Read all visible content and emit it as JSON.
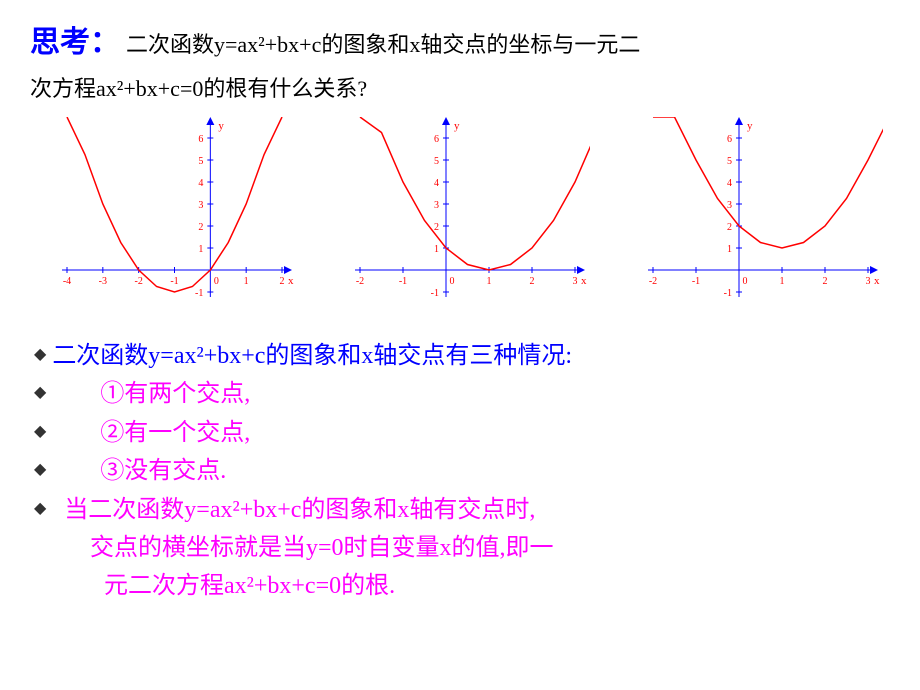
{
  "title": {
    "prefix": "思考：",
    "text1": "二次函数y=ax²+bx+c的图象和x轴交点的坐标与一元二",
    "text2": "次方程ax²+bx+c=0的根有什么关系?"
  },
  "charts": [
    {
      "type": "quadratic",
      "xrange": [
        -4,
        2
      ],
      "yrange": [
        -1,
        6
      ],
      "xticks": [
        -4,
        -3,
        -2,
        -1,
        0,
        1,
        2
      ],
      "yticks": [
        -1,
        1,
        2,
        3,
        4,
        5,
        6
      ],
      "vertex": [
        -1,
        -1
      ],
      "curve": [
        [
          -4,
          8
        ],
        [
          -3.5,
          5.25
        ],
        [
          -3,
          3
        ],
        [
          -2.5,
          1.25
        ],
        [
          -2,
          0
        ],
        [
          -1.5,
          -0.75
        ],
        [
          -1,
          -1
        ],
        [
          -0.5,
          -0.75
        ],
        [
          0,
          0
        ],
        [
          0.5,
          1.25
        ],
        [
          1,
          3
        ],
        [
          1.5,
          5.25
        ],
        [
          2,
          8
        ]
      ],
      "axis_color": "#0000ff",
      "curve_color": "#ff0000",
      "tick_color": "#ff0000",
      "bg": "#ffffff",
      "xlabel": "x",
      "ylabel": "y",
      "line_width": 1.5
    },
    {
      "type": "quadratic",
      "xrange": [
        -2,
        3
      ],
      "yrange": [
        -1,
        6
      ],
      "xticks": [
        -2,
        -1,
        0,
        1,
        2,
        3
      ],
      "yticks": [
        -1,
        1,
        2,
        3,
        4,
        5,
        6
      ],
      "vertex": [
        1,
        0
      ],
      "curve": [
        [
          -2,
          9
        ],
        [
          -1.5,
          6.25
        ],
        [
          -1,
          4
        ],
        [
          -0.5,
          2.25
        ],
        [
          0,
          1
        ],
        [
          0.5,
          0.25
        ],
        [
          1,
          0
        ],
        [
          1.5,
          0.25
        ],
        [
          2,
          1
        ],
        [
          2.5,
          2.25
        ],
        [
          3,
          4
        ],
        [
          3.5,
          6.25
        ]
      ],
      "axis_color": "#0000ff",
      "curve_color": "#ff0000",
      "tick_color": "#ff0000",
      "bg": "#ffffff",
      "xlabel": "x",
      "ylabel": "y",
      "line_width": 1.5
    },
    {
      "type": "quadratic",
      "xrange": [
        -2,
        3
      ],
      "yrange": [
        -1,
        6
      ],
      "xticks": [
        -2,
        -1,
        0,
        1,
        2,
        3
      ],
      "yticks": [
        -1,
        1,
        2,
        3,
        4,
        5,
        6
      ],
      "vertex": [
        1,
        1
      ],
      "curve": [
        [
          -2,
          10
        ],
        [
          -1.5,
          7.25
        ],
        [
          -1,
          5
        ],
        [
          -0.5,
          3.25
        ],
        [
          0,
          2
        ],
        [
          0.5,
          1.25
        ],
        [
          1,
          1
        ],
        [
          1.5,
          1.25
        ],
        [
          2,
          2
        ],
        [
          2.5,
          3.25
        ],
        [
          3,
          5
        ],
        [
          3.5,
          7.25
        ]
      ],
      "axis_color": "#0000ff",
      "curve_color": "#ff0000",
      "tick_color": "#ff0000",
      "bg": "#ffffff",
      "xlabel": "x",
      "ylabel": "y",
      "line_width": 1.5
    }
  ],
  "answer": {
    "main": "二次函数y=ax²+bx+c的图象和x轴交点有三种情况:",
    "item1": "①有两个交点,",
    "item2": "②有一个交点,",
    "item3": "③没有交点.",
    "explain1": "当二次函数y=ax²+bx+c的图象和x轴有交点时,",
    "explain2": "交点的横坐标就是当y=0时自变量x的值,即一",
    "explain3": "元二次方程ax²+bx+c=0的根."
  },
  "bullet": "◆"
}
